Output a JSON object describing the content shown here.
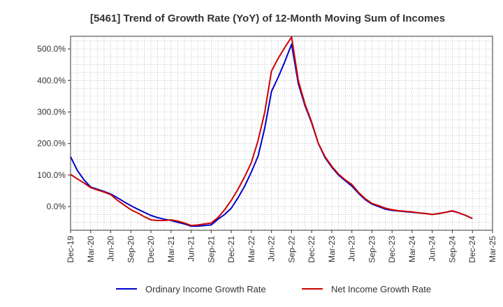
{
  "chart_data": {
    "type": "line",
    "title": "[5461]  Trend of Growth Rate (YoY) of 12-Month Moving Sum of Incomes",
    "xlabel": "",
    "ylabel": "",
    "x_tick_labels": [
      "Dec-19",
      "Mar-20",
      "Jun-20",
      "Sep-20",
      "Dec-20",
      "Mar-21",
      "Jun-21",
      "Sep-21",
      "Dec-21",
      "Mar-22",
      "Jun-22",
      "Sep-22",
      "Dec-22",
      "Mar-23",
      "Jun-23",
      "Sep-23",
      "Dec-23",
      "Mar-24",
      "Jun-24",
      "Sep-24",
      "Dec-24",
      "Mar-25"
    ],
    "y_ticks": [
      0,
      100,
      200,
      300,
      400,
      500
    ],
    "y_tick_labels": [
      "0.0%",
      "100.0%",
      "200.0%",
      "300.0%",
      "400.0%",
      "500.0%"
    ],
    "ylim": [
      -75,
      540
    ],
    "grid": true,
    "legend_position": "bottom",
    "x": [
      "2019-12",
      "2020-01",
      "2020-02",
      "2020-03",
      "2020-04",
      "2020-05",
      "2020-06",
      "2020-07",
      "2020-08",
      "2020-09",
      "2020-10",
      "2020-11",
      "2020-12",
      "2021-01",
      "2021-02",
      "2021-03",
      "2021-04",
      "2021-05",
      "2021-06",
      "2021-07",
      "2021-08",
      "2021-09",
      "2021-10",
      "2021-11",
      "2021-12",
      "2022-01",
      "2022-02",
      "2022-03",
      "2022-04",
      "2022-05",
      "2022-06",
      "2022-07",
      "2022-08",
      "2022-09",
      "2022-10",
      "2022-11",
      "2022-12",
      "2023-01",
      "2023-02",
      "2023-03",
      "2023-04",
      "2023-05",
      "2023-06",
      "2023-07",
      "2023-08",
      "2023-09",
      "2023-10",
      "2023-11",
      "2023-12",
      "2024-01",
      "2024-02",
      "2024-03",
      "2024-04",
      "2024-05",
      "2024-06",
      "2024-07",
      "2024-08",
      "2024-09",
      "2024-10",
      "2024-11",
      "2024-12"
    ],
    "series": [
      {
        "name": "Ordinary Income Growth Rate",
        "color": "#0000cc",
        "values": [
          158,
          115,
          85,
          62,
          55,
          48,
          40,
          28,
          15,
          3,
          -8,
          -18,
          -28,
          -35,
          -40,
          -44,
          -50,
          -55,
          -62,
          -62,
          -60,
          -58,
          -40,
          -25,
          -5,
          28,
          65,
          110,
          160,
          250,
          365,
          410,
          460,
          515,
          390,
          320,
          265,
          200,
          155,
          125,
          100,
          82,
          65,
          42,
          22,
          8,
          0,
          -8,
          -12,
          -14,
          -16,
          -18,
          -20,
          -22,
          -25,
          -22,
          -18,
          -14,
          -20,
          -28,
          -38
        ]
      },
      {
        "name": "Net Income Growth Rate",
        "color": "#cc0000",
        "values": [
          102,
          88,
          75,
          60,
          53,
          46,
          38,
          20,
          5,
          -10,
          -20,
          -32,
          -42,
          -44,
          -44,
          -42,
          -46,
          -52,
          -60,
          -58,
          -55,
          -52,
          -35,
          -10,
          20,
          55,
          95,
          140,
          210,
          300,
          430,
          470,
          505,
          538,
          400,
          325,
          268,
          200,
          158,
          128,
          103,
          85,
          70,
          45,
          25,
          10,
          3,
          -5,
          -10,
          -13,
          -15,
          -17,
          -20,
          -22,
          -25,
          -22,
          -18,
          -13,
          -20,
          -28,
          -38
        ]
      }
    ]
  }
}
